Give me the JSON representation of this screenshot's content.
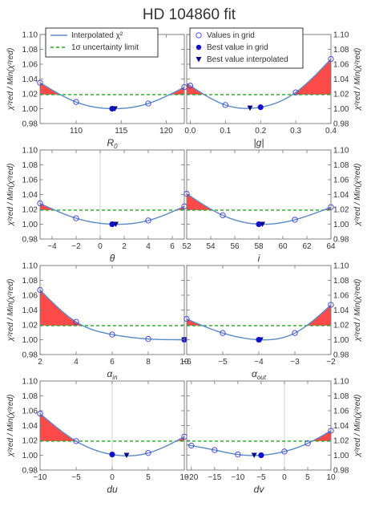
{
  "title": "HD 104860 fit",
  "colors": {
    "curve": "#5b8bc2",
    "grid_point": "#3a3ae0",
    "best": "#1010c8",
    "limit": "#22aa22",
    "fill": "#ff4a4a",
    "zero_line": "#c8c8c8"
  },
  "legend_left": {
    "items": [
      {
        "label": "Interpolated χ²",
        "icon": "solid-line"
      },
      {
        "label": "1σ uncertainty limit",
        "icon": "dashed-line"
      }
    ]
  },
  "legend_right": {
    "items": [
      {
        "label": "Values in grid",
        "icon": "open-circle"
      },
      {
        "label": "Best value in grid",
        "icon": "filled-circle"
      },
      {
        "label": "Best value interpolated",
        "icon": "down-triangle"
      }
    ]
  },
  "y_axis_label": "χ²red / Min(χ²red)",
  "chart_data": [
    {
      "type": "line",
      "xlabel": "R0",
      "xlim": [
        106,
        122
      ],
      "ylim": [
        0.98,
        1.1
      ],
      "xticks": [
        110,
        115,
        120
      ],
      "yticks": [
        0.98,
        1.0,
        1.02,
        1.04,
        1.06,
        1.08,
        1.1
      ],
      "limit": 1.019,
      "grid_x": [
        106,
        110,
        114,
        118,
        122
      ],
      "grid_y": [
        1.035,
        1.009,
        1.0,
        1.007,
        1.029
      ],
      "best_grid": [
        114,
        1.0
      ],
      "best_interp": [
        114.3,
        1.0
      ]
    },
    {
      "type": "line",
      "xlabel": "|g|",
      "xlim": [
        -0.01,
        0.4
      ],
      "ylim": [
        0.98,
        1.1
      ],
      "xticks": [
        0.0,
        0.1,
        0.2,
        0.3,
        0.4
      ],
      "yticks": [
        0.98,
        1.0,
        1.02,
        1.04,
        1.06,
        1.08,
        1.1
      ],
      "limit": 1.019,
      "grid_x": [
        0.0,
        0.1,
        0.2,
        0.3,
        0.4
      ],
      "grid_y": [
        1.031,
        1.005,
        1.002,
        1.022,
        1.067
      ],
      "best_grid": [
        0.2,
        1.002
      ],
      "best_interp": [
        0.17,
        1.001
      ]
    },
    {
      "type": "line",
      "xlabel": "θ",
      "xlim": [
        -5,
        7
      ],
      "ylim": [
        0.98,
        1.1
      ],
      "xticks": [
        -4,
        -2,
        0,
        2,
        4,
        6
      ],
      "yticks": [
        0.98,
        1.0,
        1.02,
        1.04,
        1.06,
        1.08,
        1.1
      ],
      "limit": 1.019,
      "grid_x": [
        -5,
        -2,
        1,
        4,
        7
      ],
      "grid_y": [
        1.028,
        1.008,
        1.0,
        1.005,
        1.024
      ],
      "best_grid": [
        1,
        1.0
      ],
      "best_interp": [
        1.3,
        1.0
      ],
      "vline": 0
    },
    {
      "type": "line",
      "xlabel": "i",
      "xlim": [
        52,
        64
      ],
      "ylim": [
        0.98,
        1.1
      ],
      "xticks": [
        52,
        54,
        56,
        58,
        60,
        62,
        64
      ],
      "yticks": [
        0.98,
        1.0,
        1.02,
        1.04,
        1.06,
        1.08,
        1.1
      ],
      "limit": 1.019,
      "grid_x": [
        52,
        55,
        58,
        61,
        64
      ],
      "grid_y": [
        1.041,
        1.012,
        1.0,
        1.006,
        1.023
      ],
      "best_grid": [
        58,
        1.0
      ],
      "best_interp": [
        58.3,
        1.0
      ]
    },
    {
      "type": "line",
      "xlabel": "αin",
      "xlim": [
        2,
        10
      ],
      "ylim": [
        0.98,
        1.1
      ],
      "xticks": [
        2,
        4,
        6,
        8,
        10
      ],
      "yticks": [
        0.98,
        1.0,
        1.02,
        1.04,
        1.06,
        1.08,
        1.1
      ],
      "limit": 1.019,
      "grid_x": [
        2,
        4,
        6,
        8,
        10
      ],
      "grid_y": [
        1.067,
        1.024,
        1.007,
        1.001,
        1.0
      ],
      "best_grid": [
        10,
        1.0
      ],
      "best_interp": [
        10,
        1.0
      ]
    },
    {
      "type": "line",
      "xlabel": "αout",
      "xlim": [
        -6,
        -2
      ],
      "ylim": [
        0.98,
        1.1
      ],
      "xticks": [
        -6,
        -5,
        -4,
        -3,
        -2
      ],
      "yticks": [
        0.98,
        1.0,
        1.02,
        1.04,
        1.06,
        1.08,
        1.1
      ],
      "limit": 1.019,
      "grid_x": [
        -6,
        -5,
        -4,
        -3,
        -2
      ],
      "grid_y": [
        1.028,
        1.009,
        1.0,
        1.009,
        1.047
      ],
      "best_grid": [
        -4,
        1.0
      ],
      "best_interp": [
        -3.95,
        1.0
      ]
    },
    {
      "type": "line",
      "xlabel": "du",
      "xlim": [
        -10,
        10
      ],
      "ylim": [
        0.98,
        1.1
      ],
      "xticks": [
        -10,
        -5,
        0,
        5,
        10
      ],
      "yticks": [
        0.98,
        1.0,
        1.02,
        1.04,
        1.06,
        1.08,
        1.1
      ],
      "limit": 1.019,
      "grid_x": [
        -10,
        -5,
        0,
        5,
        10
      ],
      "grid_y": [
        1.056,
        1.019,
        1.001,
        1.003,
        1.025
      ],
      "best_grid": [
        0,
        1.001
      ],
      "best_interp": [
        2,
        1.0
      ],
      "vline": 0
    },
    {
      "type": "line",
      "xlabel": "dv",
      "xlim": [
        -21,
        10
      ],
      "ylim": [
        0.98,
        1.1
      ],
      "xticks": [
        -20,
        -15,
        -10,
        -5,
        0,
        5,
        10
      ],
      "yticks": [
        0.98,
        1.0,
        1.02,
        1.04,
        1.06,
        1.08,
        1.1
      ],
      "limit": 1.019,
      "grid_x": [
        -20,
        -15,
        -10,
        -5,
        0,
        5,
        10
      ],
      "grid_y": [
        1.013,
        1.007,
        1.001,
        1.0,
        1.005,
        1.016,
        1.033
      ],
      "best_grid": [
        -5,
        1.0
      ],
      "best_interp": [
        -6.5,
        1.0
      ],
      "vline": 0
    }
  ]
}
